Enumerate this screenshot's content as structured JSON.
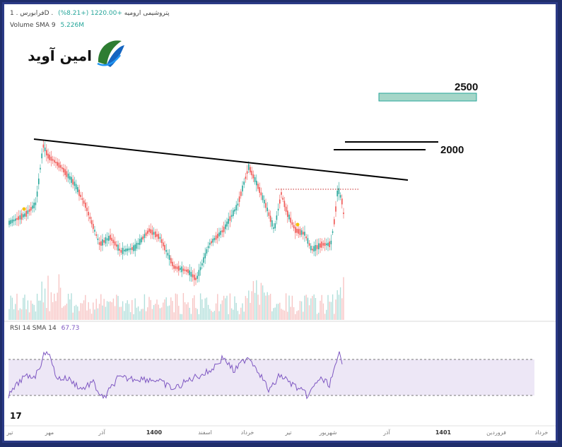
{
  "header": {
    "symbol_line": "فرابورس . 1D . پتروشیمی ارومیه",
    "change": "+1220.00 (+8.21%)",
    "volume_label": "Volume SMA 9",
    "volume_value": "5.226M"
  },
  "logo": {
    "text": "امین آوید"
  },
  "rsi": {
    "label": "RSI 14 SMA 14",
    "value": "67.73"
  },
  "tv_logo": "17",
  "colors": {
    "up": "#26a69a",
    "down": "#ef5350",
    "rsi_line": "#7e57c2",
    "rsi_band": "#ede7f6",
    "frame": "#2b3a86",
    "zone": "#a5d6c8"
  },
  "chart_data": {
    "type": "candlestick",
    "annotations": [
      "2500",
      "2000"
    ],
    "x_tick_labels": [
      "تیر",
      "مهر",
      "آذر",
      "1400",
      "اسفند",
      "خرداد",
      "تیر",
      "شهریور",
      "آذر",
      "1401",
      "فروردین",
      "خرداد"
    ],
    "rsi_levels": [
      70,
      30
    ]
  }
}
